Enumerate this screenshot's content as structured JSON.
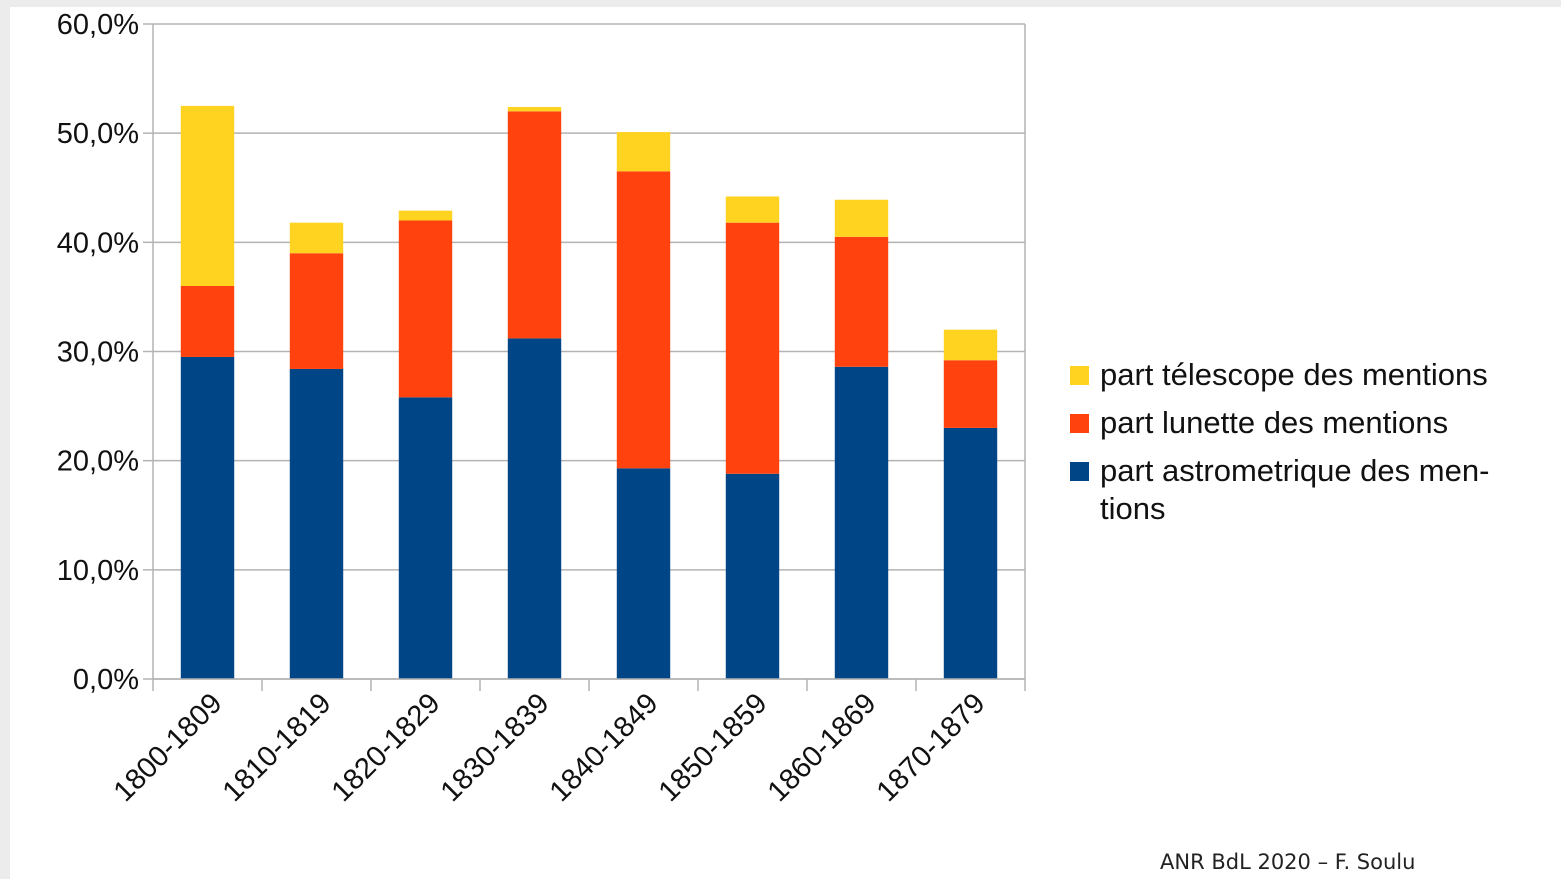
{
  "chart_data": {
    "type": "bar",
    "stacked": true,
    "categories": [
      "1800-1809",
      "1810-1819",
      "1820-1829",
      "1830-1839",
      "1840-1849",
      "1850-1859",
      "1860-1869",
      "1870-1879"
    ],
    "series": [
      {
        "name": "part astrometrique des mentions",
        "legend_lines": [
          "part astrometrique des men-",
          "tions"
        ],
        "color": "#004586",
        "values": [
          29.5,
          28.4,
          25.8,
          31.2,
          19.3,
          18.8,
          28.6,
          23.0
        ]
      },
      {
        "name": "part lunette des mentions",
        "legend_lines": [
          "part lunette des mentions"
        ],
        "color": "#ff420e",
        "values": [
          6.5,
          10.6,
          16.2,
          20.8,
          27.2,
          23.0,
          11.9,
          6.2
        ]
      },
      {
        "name": "part télescope des mentions",
        "legend_lines": [
          "part télescope des mentions"
        ],
        "color": "#ffd320",
        "values": [
          16.5,
          2.8,
          0.9,
          0.4,
          3.6,
          2.4,
          3.4,
          2.8
        ]
      }
    ],
    "ylim": [
      0,
      60
    ],
    "yticks": [
      "0,0%",
      "10,0%",
      "20,0%",
      "30,0%",
      "40,0%",
      "50,0%",
      "60,0%"
    ],
    "grid": true,
    "legend_position": "right",
    "xlabel": "",
    "ylabel": "",
    "title": ""
  },
  "footer": {
    "credit": "ANR BdL 2020 – F. Soulu"
  },
  "colors": {
    "grid": "#b3b3b3",
    "axis": "#b3b3b3",
    "background": "#ffffff"
  }
}
